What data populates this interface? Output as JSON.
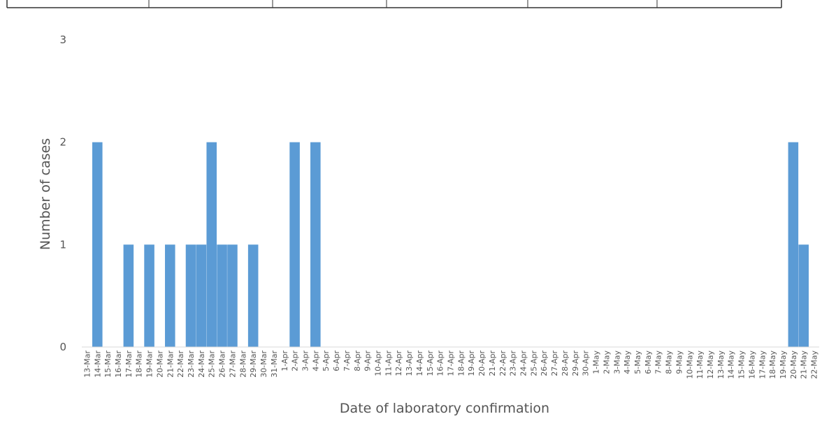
{
  "chart_data": {
    "type": "bar",
    "categories": [
      "13-Mar",
      "14-Mar",
      "15-Mar",
      "16-Mar",
      "17-Mar",
      "18-Mar",
      "19-Mar",
      "20-Mar",
      "21-Mar",
      "22-Mar",
      "23-Mar",
      "24-Mar",
      "25-Mar",
      "26-Mar",
      "27-Mar",
      "28-Mar",
      "29-Mar",
      "30-Mar",
      "31-Mar",
      "1-Apr",
      "2-Apr",
      "3-Apr",
      "4-Apr",
      "5-Apr",
      "6-Apr",
      "7-Apr",
      "8-Apr",
      "9-Apr",
      "10-Apr",
      "11-Apr",
      "12-Apr",
      "13-Apr",
      "14-Apr",
      "15-Apr",
      "16-Apr",
      "17-Apr",
      "18-Apr",
      "19-Apr",
      "20-Apr",
      "21-Apr",
      "22-Apr",
      "23-Apr",
      "24-Apr",
      "25-Apr",
      "26-Apr",
      "27-Apr",
      "28-Apr",
      "29-Apr",
      "30-Apr",
      "1-May",
      "2-May",
      "3-May",
      "4-May",
      "5-May",
      "6-May",
      "7-May",
      "8-May",
      "9-May",
      "10-May",
      "11-May",
      "12-May",
      "13-May",
      "14-May",
      "15-May",
      "16-May",
      "17-May",
      "18-May",
      "19-May",
      "20-May",
      "21-May",
      "22-May"
    ],
    "values": [
      0,
      2,
      0,
      0,
      1,
      0,
      1,
      0,
      1,
      0,
      1,
      1,
      2,
      1,
      1,
      0,
      1,
      0,
      0,
      0,
      2,
      0,
      2,
      0,
      0,
      0,
      0,
      0,
      0,
      0,
      0,
      0,
      0,
      0,
      0,
      0,
      0,
      0,
      0,
      0,
      0,
      0,
      0,
      0,
      0,
      0,
      0,
      0,
      0,
      0,
      0,
      0,
      0,
      0,
      0,
      0,
      0,
      0,
      0,
      0,
      0,
      0,
      0,
      0,
      0,
      0,
      0,
      0,
      2,
      1,
      0
    ],
    "xlabel": "Date of laboratory confirmation",
    "ylabel": "Number of cases",
    "ylim": [
      0,
      3
    ],
    "yticks": [
      0,
      1,
      2,
      3
    ],
    "grid": false,
    "bar_color": "#5b9bd5",
    "axis_text_color": "#555555"
  }
}
